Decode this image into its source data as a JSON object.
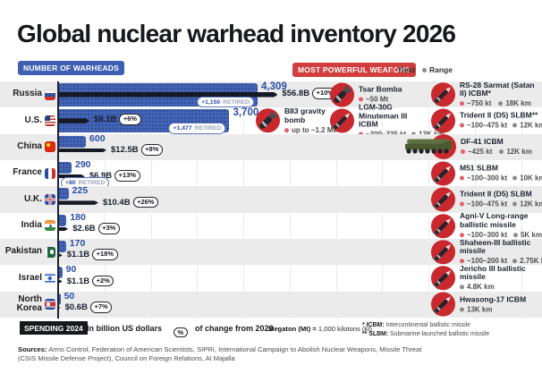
{
  "header": {
    "title": "Global nuclear warhead inventory 2026",
    "left_badge": "NUMBER OF WARHEADS",
    "right_badge": "MOST POWERFUL WEAPONS",
    "legend_yield": "Yield",
    "legend_range": "Range"
  },
  "colors": {
    "accent_blue": "#3e5fb2",
    "accent_red": "#d23e3e",
    "bar_blue": "#4363b4",
    "bar_black": "#151a24",
    "count_blue": "#2b4da6",
    "yield_dot": "#e0606b",
    "range_dot": "#8a8a8a",
    "icon_red": "#c9292e",
    "stripe_gray": "#ebebeb"
  },
  "chart_data": {
    "type": "bar",
    "orientation": "horizontal",
    "title": "Global nuclear warhead inventory 2026",
    "categories": [
      "Russia",
      "U.S.",
      "China",
      "France",
      "U.K.",
      "India",
      "Pakistan",
      "Israel",
      "North Korea"
    ],
    "series": [
      {
        "name": "Number of warheads",
        "values": [
          4309,
          3700,
          600,
          290,
          225,
          180,
          170,
          90,
          50
        ]
      },
      {
        "name": "Spending 2024 (billion US dollars)",
        "values": [
          56.8,
          8.1,
          12.5,
          6.9,
          10.4,
          2.6,
          1.1,
          1.1,
          0.6
        ]
      },
      {
        "name": "Spending change from 2023 (%)",
        "values": [
          10,
          6,
          8,
          13,
          26,
          3,
          18,
          2,
          7
        ]
      },
      {
        "name": "Retired warheads",
        "values": [
          1150,
          1477,
          null,
          80,
          null,
          null,
          null,
          null,
          null
        ]
      }
    ],
    "xlabel": "",
    "ylabel": "",
    "grid": "vertical-dotted, one line per 1,000 warheads",
    "legend_position": "top"
  },
  "rows": [
    {
      "country": "Russia",
      "flag": "ru",
      "warheads": 4309,
      "warheads_label": "4,309",
      "spending": 56.8,
      "spending_label": "$56.8B",
      "change": "+10%",
      "retired_count": "+1,150",
      "retired_word": "RETIRED",
      "weapons": [
        {
          "col": "mid",
          "icon": "bomb",
          "name": "Tsar Bomba",
          "yield": "~50 Mt"
        },
        {
          "col": "right",
          "icon": "missile",
          "name": "RS-28 Sarmat (Satan II) ICBM*",
          "yield": "~750 kt",
          "range": "18K km"
        }
      ]
    },
    {
      "country": "U.S.",
      "flag": "us",
      "warheads": 3700,
      "warheads_label": "3,700",
      "spending": 8.1,
      "spending_label": "$8.1B",
      "change": "+6%",
      "retired_count": "+1,477",
      "retired_word": "RETIRED",
      "weapons": [
        {
          "col": "midleft",
          "icon": "bomb",
          "name": "B83 gravity bomb",
          "yield": "up to ~1.2 Mt"
        },
        {
          "col": "mid",
          "icon": "missile",
          "name": "LGM-30G Minuteman III ICBM",
          "yield": "~300–335 kt",
          "range": "13K km"
        },
        {
          "col": "right",
          "icon": "missile",
          "name": "Trident II (D5) SLBM**",
          "yield": "~100–475 kt",
          "range": "12K km"
        }
      ]
    },
    {
      "country": "China",
      "flag": "cn",
      "warheads": 600,
      "warheads_label": "600",
      "spending": 12.5,
      "spending_label": "$12.5B",
      "change": "+8%",
      "weapons": [
        {
          "col": "right",
          "icon": "truck",
          "name": "DF-41 ICBM",
          "yield": "~425 kt",
          "range": "12K km"
        }
      ]
    },
    {
      "country": "France",
      "flag": "fr",
      "warheads": 290,
      "warheads_label": "290",
      "spending": 6.9,
      "spending_label": "$6.9B",
      "change": "+13%",
      "retired_count": "+80",
      "retired_word": "RETIRED",
      "weapons": [
        {
          "col": "right",
          "icon": "missile",
          "name": "M51 SLBM",
          "yield": "~100–300 kt",
          "range": "10K km"
        }
      ]
    },
    {
      "country": "U.K.",
      "flag": "gb",
      "warheads": 225,
      "warheads_label": "225",
      "spending": 10.4,
      "spending_label": "$10.4B",
      "change": "+26%",
      "weapons": [
        {
          "col": "right",
          "icon": "missile",
          "name": "Trident II (D5) SLBM",
          "yield": "~100–475 kt",
          "range": "12K km"
        }
      ]
    },
    {
      "country": "India",
      "flag": "in",
      "warheads": 180,
      "warheads_label": "180",
      "spending": 2.6,
      "spending_label": "$2.6B",
      "change": "+3%",
      "weapons": [
        {
          "col": "right",
          "icon": "missile",
          "name": "Agni-V Long-range ballistic missile",
          "yield": "~100–300 kt",
          "range": "5K km"
        }
      ]
    },
    {
      "country": "Pakistan",
      "flag": "pk",
      "warheads": 170,
      "warheads_label": "170",
      "spending": 1.1,
      "spending_label": "$1.1B",
      "change": "+18%",
      "weapons": [
        {
          "col": "right",
          "icon": "missile",
          "name": "Shaheen-III ballistic missile",
          "yield": "~100–200 kt",
          "range": "2.75K km"
        }
      ]
    },
    {
      "country": "Israel",
      "flag": "il",
      "warheads": 90,
      "warheads_label": "90",
      "spending": 1.1,
      "spending_label": "$1.1B",
      "change": "+2%",
      "weapons": [
        {
          "col": "right",
          "icon": "missile",
          "name": "Jericho III ballistic missile",
          "range": "4.8K km"
        }
      ]
    },
    {
      "country": "North Korea",
      "flag": "kp",
      "warheads": 50,
      "warheads_label": "50",
      "spending": 0.6,
      "spending_label": "$0.6B",
      "change": "+7%",
      "weapons": [
        {
          "col": "right",
          "icon": "missile",
          "name": "Hwasong-17 ICBM",
          "range": "13K km"
        }
      ]
    }
  ],
  "footer": {
    "spending_badge": "SPENDING 2024",
    "billion_note": "In billion US dollars",
    "percent_symbol": "%",
    "change_note": "of change from 2023",
    "megaton_bold": "Megaton (Mt) =",
    "megaton_rest": "1,000 kilotons (kt)",
    "footnote_icbm_prefix": "* ICBM:",
    "footnote_icbm": "Intercontinental ballistic missile",
    "footnote_slbm_prefix": "** SLBM:",
    "footnote_slbm": "Submarine-launched ballistic missile"
  },
  "sources": {
    "label": "Sources:",
    "text": "Arms Control, Federation of American Scientists, SIPRI, International Campaign to Abolish Nuclear Weapons, Missile Threat (CSIS Missile Defense Project), Council on Foreign Relations, Al Majalla"
  }
}
